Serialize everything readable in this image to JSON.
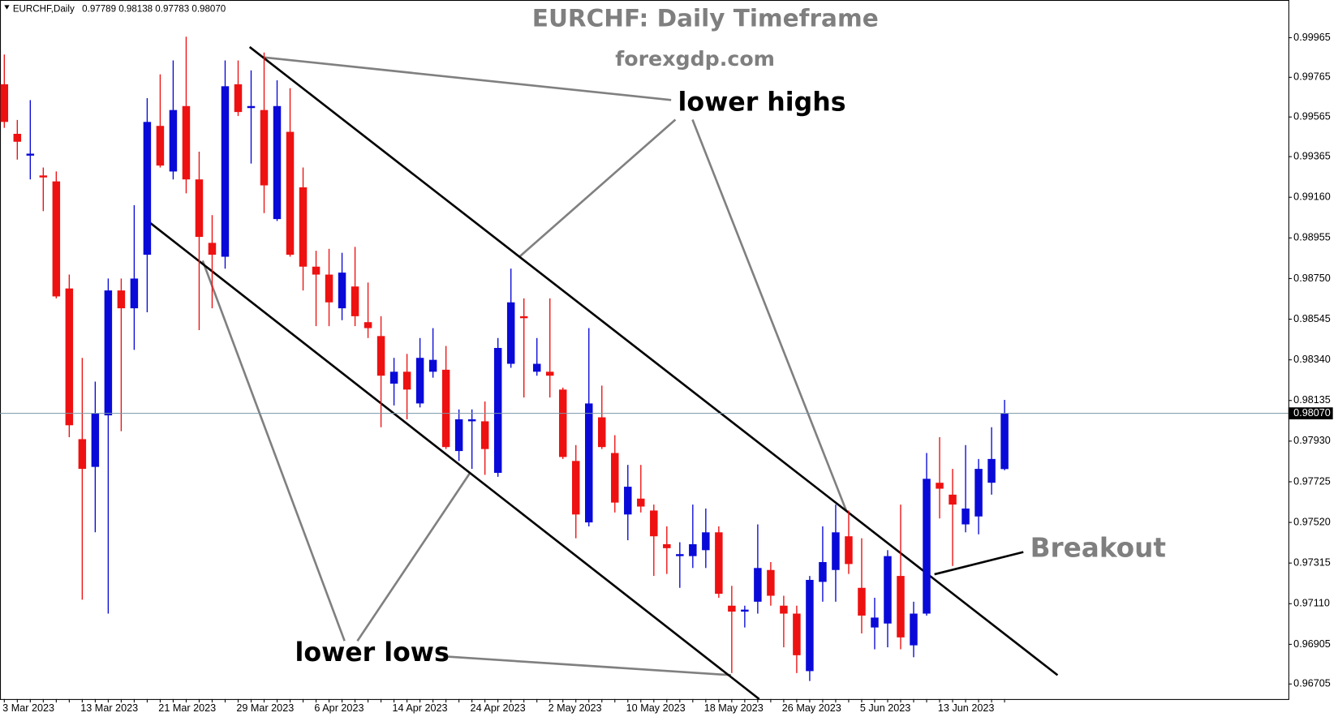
{
  "chart_data": {
    "type": "candlestick",
    "title": "EURCHF: Daily Timeframe",
    "subtitle": "forexgdp.com",
    "header_values": "0.97789 0.98138 0.97783 0.98070",
    "last_price_label": "0.98070",
    "annotations": [
      "lower highs",
      "lower lows",
      "Breakout"
    ],
    "categories": [
      "3 Mar 2023",
      null,
      null,
      null,
      null,
      null,
      "13 Mar 2023",
      null,
      null,
      null,
      null,
      null,
      "21 Mar 2023",
      null,
      null,
      null,
      null,
      null,
      "29 Mar 2023",
      null,
      null,
      null,
      null,
      null,
      "6 Apr 2023",
      null,
      null,
      null,
      null,
      null,
      "14 Apr 2023",
      null,
      null,
      null,
      null,
      null,
      "24 Apr 2023",
      null,
      null,
      null,
      null,
      null,
      "2 May 2023",
      null,
      null,
      null,
      null,
      null,
      "10 May 2023",
      null,
      null,
      null,
      null,
      null,
      "18 May 2023",
      null,
      null,
      null,
      null,
      null,
      "26 May 2023",
      null,
      null,
      null,
      null,
      null,
      "5 Jun 2023",
      null,
      null,
      null,
      null,
      null,
      "13 Jun 2023",
      null,
      null,
      null,
      null,
      null
    ],
    "series": [
      {
        "name": "EURCHF,Daily",
        "up_color": "#0a0ad8",
        "down_color": "#ee1111",
        "open": [
          0.9973,
          0.9948,
          0.9937,
          0.9927,
          0.9924,
          0.987,
          0.9794,
          0.978,
          0.9806,
          0.9869,
          0.986,
          0.9887,
          0.9952,
          0.9929,
          0.9962,
          0.9925,
          0.9893,
          0.9886,
          0.9973,
          0.9961,
          0.996,
          0.9905,
          0.9949,
          0.9921,
          0.9881,
          0.9877,
          0.986,
          0.9871,
          0.9853,
          0.9846,
          0.9822,
          0.9828,
          0.9812,
          0.9828,
          0.9829,
          0.9788,
          0.9803,
          0.9803,
          0.9777,
          0.9832,
          0.9856,
          0.9828,
          0.9828,
          0.9819,
          0.9783,
          0.9752,
          0.9805,
          0.9787,
          0.9756,
          0.9764,
          0.9758,
          0.9741,
          0.9735,
          0.9735,
          0.9738,
          0.9747,
          0.971,
          0.9707,
          0.9712,
          0.9728,
          0.971,
          0.9706,
          0.9677,
          0.9722,
          0.9728,
          0.9745,
          0.9719,
          0.9699,
          0.9701,
          0.9725,
          0.969,
          0.9706,
          0.9772,
          0.9766,
          0.9751,
          0.9755,
          0.9772,
          0.97789
        ],
        "high": [
          0.9988,
          0.9955,
          0.9965,
          0.9931,
          0.9929,
          0.9877,
          0.9835,
          0.9823,
          0.9875,
          0.9875,
          0.9912,
          0.9966,
          0.9978,
          0.9985,
          0.9997,
          0.9939,
          0.9907,
          0.9985,
          0.9985,
          0.998,
          0.9989,
          0.9975,
          0.9971,
          0.9931,
          0.9889,
          0.989,
          0.9888,
          0.9891,
          0.9873,
          0.9856,
          0.9835,
          0.9837,
          0.9845,
          0.985,
          0.9841,
          0.9809,
          0.9809,
          0.9813,
          0.9845,
          0.988,
          0.9865,
          0.9845,
          0.9865,
          0.982,
          0.9791,
          0.985,
          0.9821,
          0.9796,
          0.9781,
          0.9781,
          0.9761,
          0.975,
          0.9742,
          0.9761,
          0.9759,
          0.975,
          0.972,
          0.971,
          0.9751,
          0.9732,
          0.9715,
          0.971,
          0.9725,
          0.975,
          0.9761,
          0.9758,
          0.9744,
          0.9714,
          0.9738,
          0.9761,
          0.9712,
          0.9787,
          0.9795,
          0.9779,
          0.9791,
          0.9784,
          0.98,
          0.98138
        ],
        "low": [
          0.9951,
          0.9935,
          0.9925,
          0.9909,
          0.9865,
          0.9795,
          0.9713,
          0.9747,
          0.9706,
          0.9798,
          0.9839,
          0.9858,
          0.9931,
          0.9925,
          0.9918,
          0.9849,
          0.986,
          0.988,
          0.9957,
          0.9933,
          0.9908,
          0.9904,
          0.9886,
          0.9869,
          0.9851,
          0.9851,
          0.9854,
          0.9851,
          0.9845,
          0.98,
          0.9811,
          0.9804,
          0.981,
          0.9825,
          0.9789,
          0.9783,
          0.9779,
          0.9776,
          0.9775,
          0.983,
          0.9815,
          0.9826,
          0.9815,
          0.9784,
          0.9744,
          0.975,
          0.9789,
          0.9757,
          0.9743,
          0.9757,
          0.9725,
          0.9726,
          0.9719,
          0.9729,
          0.9729,
          0.9714,
          0.9676,
          0.9699,
          0.9706,
          0.971,
          0.9689,
          0.9676,
          0.9672,
          0.9712,
          0.9712,
          0.9726,
          0.9696,
          0.9688,
          0.9689,
          0.9688,
          0.9684,
          0.9705,
          0.9754,
          0.973,
          0.9747,
          0.9746,
          0.9766,
          0.97783
        ],
        "close": [
          0.9954,
          0.9944,
          0.9938,
          0.9926,
          0.9866,
          0.9801,
          0.9779,
          0.9807,
          0.9869,
          0.986,
          0.9875,
          0.9954,
          0.9932,
          0.996,
          0.9925,
          0.9896,
          0.9887,
          0.9972,
          0.9959,
          0.9962,
          0.9922,
          0.9962,
          0.9887,
          0.9881,
          0.9877,
          0.9863,
          0.9878,
          0.9856,
          0.985,
          0.9826,
          0.9828,
          0.9819,
          0.9835,
          0.9834,
          0.979,
          0.9804,
          0.9804,
          0.9789,
          0.984,
          0.9863,
          0.9855,
          0.9832,
          0.9826,
          0.9785,
          0.9756,
          0.9812,
          0.979,
          0.9762,
          0.977,
          0.976,
          0.9745,
          0.9739,
          0.9736,
          0.9741,
          0.9747,
          0.9716,
          0.9707,
          0.9708,
          0.9729,
          0.9715,
          0.9706,
          0.9685,
          0.9723,
          0.9732,
          0.9747,
          0.9731,
          0.9705,
          0.9704,
          0.9735,
          0.9694,
          0.9706,
          0.9774,
          0.9769,
          0.9761,
          0.9759,
          0.9779,
          0.9784,
          0.9807
        ]
      }
    ],
    "ylim": [
      0.96629,
      1.00155
    ],
    "yticks": [
      0.99965,
      0.99765,
      0.99565,
      0.99365,
      {
        "value": 0.9916,
        "label": "0.99160"
      },
      0.98955,
      {
        "value": 0.9875,
        "label": "0.98750"
      },
      0.98545,
      {
        "value": 0.9834,
        "label": "0.98340"
      },
      0.98135,
      {
        "value": 0.9793,
        "label": "0.97930"
      },
      0.97725,
      {
        "value": 0.9752,
        "label": "0.97520"
      },
      0.97315,
      {
        "value": 0.9711,
        "label": "0.97110"
      },
      0.96905,
      0.96705
    ],
    "grid": false
  }
}
